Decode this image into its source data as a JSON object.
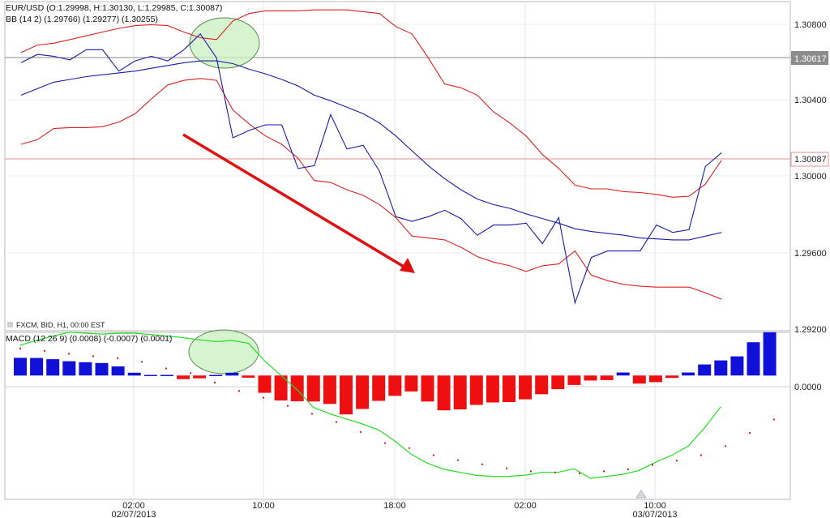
{
  "price_panel": {
    "title": "EUR/USD (O:1.29998, H:1.30130, L:1.29985, C:1.30087)",
    "indicator": "BB (14 2) (1.29766) (1.29277) (1.30255)",
    "source": "FXCM, BID, H1, 00:00 EST",
    "y_ticks": [
      "1.30800",
      "1.30400",
      "1.30000",
      "1.29600",
      "1.29200"
    ],
    "markers": [
      {
        "label": "1.30617",
        "value": 1.30617,
        "kind": "grey"
      },
      {
        "label": "1.30087",
        "value": 1.30087,
        "kind": "red"
      }
    ]
  },
  "macd_panel": {
    "title": "MACD (12 26 9)  (0.0008) (-0.0007) (0.0001)",
    "zero_label": "0.0000"
  },
  "x_axis": {
    "ticks": [
      "02:00",
      "10:00",
      "18:00",
      "02:00",
      "10:00"
    ],
    "dates": [
      "02/07/2013",
      "03/07/2013"
    ]
  },
  "colors": {
    "price": "#1a1aa8",
    "bands": "#dd2020",
    "macd_pos": "#1010d8",
    "macd_neg": "#ee1010",
    "macd_line": "#22dd22",
    "signal": "#cc1010",
    "arrow": "#e01010",
    "highlight": "#c8f0c0"
  },
  "chart_data": [
    {
      "type": "line",
      "title": "EUR/USD",
      "ylim": [
        1.2915,
        1.3092
      ],
      "series": [
        {
          "values": [
            1.30595,
            1.3064,
            1.3063,
            1.3061,
            1.30665,
            1.30665,
            1.3055,
            1.30605,
            1.3063,
            1.30605,
            1.30665,
            1.3075,
            1.3062,
            1.3019,
            1.3023,
            1.3026,
            1.3026,
            1.30025,
            1.3004,
            1.30315,
            1.3013,
            1.3015,
            1.3001,
            1.29765,
            1.2974,
            1.29765,
            1.298,
            1.29755,
            1.29665,
            1.2972,
            1.2972,
            1.2973,
            1.2962,
            1.2976,
            1.293,
            1.29545,
            1.2958,
            1.2958,
            1.2958,
            1.2972,
            1.2968,
            1.29695,
            1.30035,
            1.3011
          ]
        },
        {
          "values": [
            1.3042,
            1.30455,
            1.3049,
            1.30505,
            1.3052,
            1.3053,
            1.3054,
            1.3055,
            1.30565,
            1.3058,
            1.30595,
            1.30605,
            1.30605,
            1.3059,
            1.3056,
            1.30535,
            1.30505,
            1.3047,
            1.3042,
            1.3039,
            1.30355,
            1.3032,
            1.3027,
            1.302,
            1.3012,
            1.3004,
            1.2997,
            1.2991,
            1.2986,
            1.2983,
            1.2981,
            1.2978,
            1.29755,
            1.2973,
            1.297,
            1.29685,
            1.29675,
            1.29665,
            1.2965,
            1.29645,
            1.2964,
            1.2964,
            1.2966,
            1.2968
          ]
        },
        {
          "values": [
            1.3065,
            1.3069,
            1.307,
            1.3072,
            1.3074,
            1.3076,
            1.3078,
            1.30795,
            1.308,
            1.30795,
            1.3076,
            1.3073,
            1.3072,
            1.3082,
            1.3086,
            1.30875,
            1.30875,
            1.30875,
            1.3088,
            1.3088,
            1.3088,
            1.3087,
            1.3086,
            1.3079,
            1.3075,
            1.3062,
            1.3048,
            1.3046,
            1.3042,
            1.3033,
            1.3027,
            1.302,
            1.301,
            1.30025,
            1.29935,
            1.29915,
            1.29915,
            1.299,
            1.29895,
            1.29885,
            1.2987,
            1.29875,
            1.2994,
            1.3007
          ]
        },
        {
          "values": [
            1.30155,
            1.3018,
            1.3024,
            1.30245,
            1.30245,
            1.3025,
            1.30275,
            1.3032,
            1.304,
            1.30475,
            1.305,
            1.3051,
            1.305,
            1.3034,
            1.30265,
            1.302,
            1.30155,
            1.3008,
            1.2996,
            1.2995,
            1.2991,
            1.2988,
            1.2983,
            1.2976,
            1.2966,
            1.2965,
            1.2964,
            1.296,
            1.2955,
            1.2952,
            1.295,
            1.2947,
            1.295,
            1.2951,
            1.2958,
            1.2945,
            1.2942,
            1.294,
            1.2939,
            1.29385,
            1.29385,
            1.29385,
            1.29355,
            1.2932
          ]
        }
      ]
    },
    {
      "type": "bar",
      "title": "MACD (12 26 9)",
      "ylim": [
        -0.0061,
        0.0021
      ],
      "series": [
        {
          "values": [
            0.00088,
            0.00087,
            0.00081,
            0.00071,
            0.00066,
            0.00062,
            0.00045,
            0.00014,
            0.0,
            0.0,
            -0.00018,
            -0.00014,
            0.0,
            0.00014,
            -0.00011,
            -0.00086,
            -0.00124,
            -0.00128,
            -0.00129,
            -0.00141,
            -0.00193,
            -0.00166,
            -0.00126,
            -0.00101,
            -0.00079,
            -0.00129,
            -0.00173,
            -0.00168,
            -0.00146,
            -0.00134,
            -0.00132,
            -0.00118,
            -0.00093,
            -0.00068,
            -0.00047,
            -0.00025,
            -0.00023,
            0.00015,
            -0.0004,
            -0.00033,
            -0.00012,
            0.00015,
            0.00055,
            0.00075,
            0.00095,
            0.00165,
            0.00215
          ]
        },
        {
          "values": [
            0.0015,
            0.00175,
            0.00195,
            0.00215,
            0.0021,
            0.00205,
            0.0021,
            0.0021,
            0.00203,
            0.00196,
            0.00188,
            0.00177,
            0.00168,
            0.00174,
            0.0016,
            0.00073,
            0.0,
            -0.00071,
            -0.00158,
            -0.0019,
            -0.00215,
            -0.0024,
            -0.0027,
            -0.00325,
            -0.0039,
            -0.00435,
            -0.00465,
            -0.0048,
            -0.00495,
            -0.005,
            -0.005,
            -0.00494,
            -0.0048,
            -0.0048,
            -0.00462,
            -0.0051,
            -0.005,
            -0.0049,
            -0.0047,
            -0.0043,
            -0.00395,
            -0.0035,
            -0.0026,
            -0.00155
          ]
        },
        {
          "values": [
            0.00134,
            0.00122,
            0.00108,
            0.00096,
            0.00086,
            0.00068,
            0.00035,
            0.00012,
            -0.00035,
            -0.00076,
            -0.0011,
            -0.0015,
            -0.0019,
            -0.0023,
            -0.0028,
            -0.00335,
            -0.0036,
            -0.00395,
            -0.0042,
            -0.0044,
            -0.0046,
            -0.00475,
            -0.0048,
            -0.00485,
            -0.00475,
            -0.00465,
            -0.00443,
            -0.00422,
            -0.00395,
            -0.0035,
            -0.00285,
            -0.00218
          ]
        }
      ]
    }
  ]
}
